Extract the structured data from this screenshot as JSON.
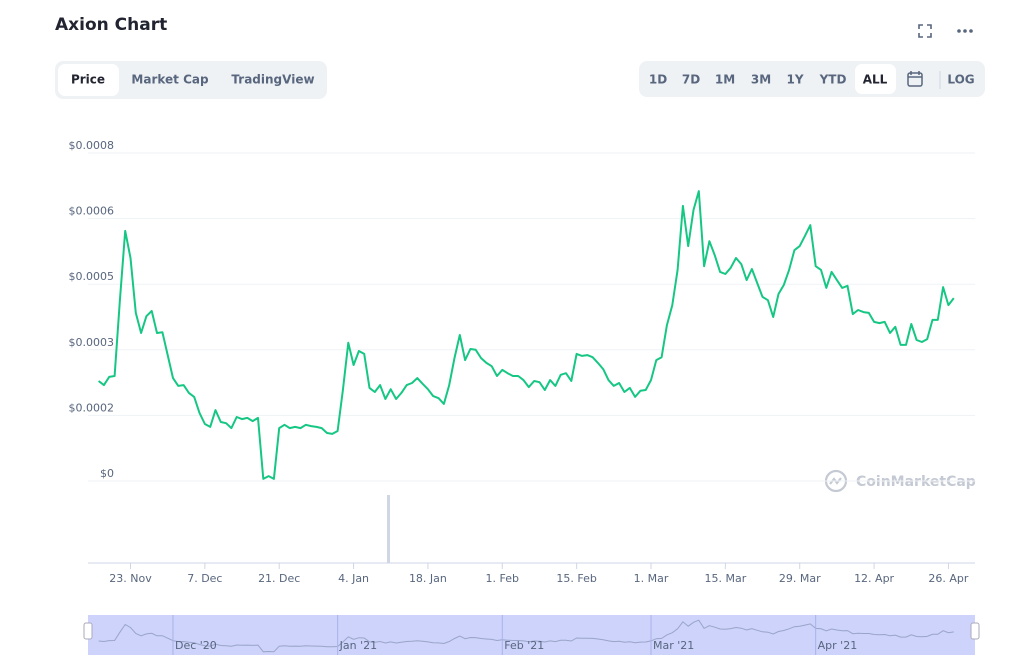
{
  "header": {
    "title": "Axion Chart"
  },
  "tabs": [
    "Price",
    "Market Cap",
    "TradingView"
  ],
  "ranges": [
    "1D",
    "7D",
    "1M",
    "3M",
    "1Y",
    "YTD",
    "ALL"
  ],
  "log_button": "LOG",
  "watermark": "CoinMarketCap",
  "chart_data": {
    "type": "line",
    "color": "#16c784",
    "x": [
      "2020-11-17",
      "2020-11-18",
      "2020-11-19",
      "2020-11-20",
      "2020-11-21",
      "2020-11-22",
      "2020-11-23",
      "2020-11-24",
      "2020-11-25",
      "2020-11-26",
      "2020-11-27",
      "2020-11-28",
      "2020-11-29",
      "2020-11-30",
      "2020-12-01",
      "2020-12-02",
      "2020-12-03",
      "2020-12-04",
      "2020-12-05",
      "2020-12-06",
      "2020-12-07",
      "2020-12-08",
      "2020-12-09",
      "2020-12-10",
      "2020-12-11",
      "2020-12-12",
      "2020-12-13",
      "2020-12-14",
      "2020-12-15",
      "2020-12-16",
      "2020-12-17",
      "2020-12-18",
      "2020-12-19",
      "2020-12-20",
      "2020-12-21",
      "2020-12-22",
      "2020-12-23",
      "2020-12-24",
      "2020-12-25",
      "2020-12-26",
      "2020-12-27",
      "2020-12-28",
      "2020-12-29",
      "2020-12-30",
      "2020-12-31",
      "2021-01-01",
      "2021-01-02",
      "2021-01-03",
      "2021-01-04",
      "2021-01-05",
      "2021-01-06",
      "2021-01-07",
      "2021-01-08",
      "2021-01-09",
      "2021-01-10",
      "2021-01-11",
      "2021-01-12",
      "2021-01-13",
      "2021-01-14",
      "2021-01-15",
      "2021-01-16",
      "2021-01-17",
      "2021-01-18",
      "2021-01-19",
      "2021-01-20",
      "2021-01-21",
      "2021-01-22",
      "2021-01-23",
      "2021-01-24",
      "2021-01-25",
      "2021-01-26",
      "2021-01-27",
      "2021-01-28",
      "2021-01-29",
      "2021-01-30",
      "2021-01-31",
      "2021-02-01",
      "2021-02-02",
      "2021-02-03",
      "2021-02-04",
      "2021-02-05",
      "2021-02-06",
      "2021-02-07",
      "2021-02-08",
      "2021-02-09",
      "2021-02-10",
      "2021-02-11",
      "2021-02-12",
      "2021-02-13",
      "2021-02-14",
      "2021-02-15",
      "2021-02-16",
      "2021-02-17",
      "2021-02-18",
      "2021-02-19",
      "2021-02-20",
      "2021-02-21",
      "2021-02-22",
      "2021-02-23",
      "2021-02-24",
      "2021-02-25",
      "2021-02-26",
      "2021-02-27",
      "2021-02-28",
      "2021-03-01",
      "2021-03-02",
      "2021-03-03",
      "2021-03-04",
      "2021-03-05",
      "2021-03-06",
      "2021-03-07",
      "2021-03-08",
      "2021-03-09",
      "2021-03-10",
      "2021-03-11",
      "2021-03-12",
      "2021-03-13",
      "2021-03-14",
      "2021-03-15",
      "2021-03-16",
      "2021-03-17",
      "2021-03-18",
      "2021-03-19",
      "2021-03-20",
      "2021-03-21",
      "2021-03-22",
      "2021-03-23",
      "2021-03-24",
      "2021-03-25",
      "2021-03-26",
      "2021-03-27",
      "2021-03-28",
      "2021-03-29",
      "2021-03-30",
      "2021-03-31",
      "2021-04-01",
      "2021-04-02",
      "2021-04-03",
      "2021-04-04",
      "2021-04-05",
      "2021-04-06",
      "2021-04-07",
      "2021-04-08",
      "2021-04-09",
      "2021-04-10",
      "2021-04-11",
      "2021-04-12",
      "2021-04-13",
      "2021-04-14",
      "2021-04-15",
      "2021-04-16",
      "2021-04-17",
      "2021-04-18",
      "2021-04-19",
      "2021-04-20",
      "2021-04-21",
      "2021-04-22",
      "2021-04-23",
      "2021-04-24",
      "2021-04-25",
      "2021-04-26",
      "2021-04-27"
    ],
    "values": [
      0.000244,
      0.000234,
      0.000254,
      0.000256,
      0.000441,
      0.00061,
      0.000544,
      0.00041,
      0.000361,
      0.000402,
      0.000415,
      0.000361,
      0.000363,
      0.000307,
      0.000251,
      0.000232,
      0.000234,
      0.000215,
      0.000205,
      0.000166,
      0.000139,
      0.000132,
      0.000173,
      0.000144,
      0.000141,
      0.000129,
      0.000156,
      0.000151,
      0.000154,
      0.000146,
      0.000154,
      5e-06,
      1.2e-05,
      5e-06,
      0.000129,
      0.000137,
      0.000129,
      0.000132,
      0.000129,
      0.000137,
      0.000134,
      0.000132,
      0.000129,
      0.000117,
      0.000115,
      0.000122,
      0.000222,
      0.000337,
      0.000283,
      0.000317,
      0.00031,
      0.000227,
      0.000217,
      0.000234,
      0.0002,
      0.000224,
      0.0002,
      0.000215,
      0.000234,
      0.000239,
      0.000251,
      0.000237,
      0.000224,
      0.000207,
      0.000202,
      0.000188,
      0.000234,
      0.0003,
      0.000356,
      0.000295,
      0.000322,
      0.00032,
      0.0003,
      0.000288,
      0.00028,
      0.000256,
      0.000271,
      0.000263,
      0.000256,
      0.000256,
      0.000246,
      0.000229,
      0.000244,
      0.000241,
      0.000222,
      0.000246,
      0.000232,
      0.000259,
      0.000263,
      0.000244,
      0.00031,
      0.000305,
      0.000307,
      0.000302,
      0.000288,
      0.000273,
      0.000246,
      0.000232,
      0.000239,
      0.000217,
      0.000227,
      0.000205,
      0.00022,
      0.000222,
      0.000246,
      0.000295,
      0.000302,
      0.00038,
      0.000429,
      0.000515,
      0.000671,
      0.000573,
      0.000661,
      0.000707,
      0.000524,
      0.000585,
      0.000551,
      0.00051,
      0.000505,
      0.00052,
      0.000544,
      0.000529,
      0.00049,
      0.000517,
      0.000483,
      0.000449,
      0.000441,
      0.0004,
      0.000456,
      0.000478,
      0.000515,
      0.000563,
      0.000573,
      0.000598,
      0.000624,
      0.000524,
      0.000515,
      0.000471,
      0.00051,
      0.00049,
      0.000471,
      0.000476,
      0.000407,
      0.000417,
      0.000412,
      0.00041,
      0.000388,
      0.000385,
      0.000388,
      0.000361,
      0.000376,
      0.000332,
      0.000332,
      0.000383,
      0.000344,
      0.000339,
      0.000346,
      0.000393,
      0.000393,
      0.000473,
      0.000429,
      0.000446
    ],
    "xlim": [
      "2020-11-15",
      "2021-05-01"
    ],
    "xticks": [
      {
        "value": "2020-11-23",
        "label": "23. Nov"
      },
      {
        "value": "2020-12-07",
        "label": "7. Dec"
      },
      {
        "value": "2020-12-21",
        "label": "21. Dec"
      },
      {
        "value": "2021-01-04",
        "label": "4. Jan"
      },
      {
        "value": "2021-01-18",
        "label": "18. Jan"
      },
      {
        "value": "2021-02-01",
        "label": "1. Feb"
      },
      {
        "value": "2021-02-15",
        "label": "15. Feb"
      },
      {
        "value": "2021-03-01",
        "label": "1. Mar"
      },
      {
        "value": "2021-03-15",
        "label": "15. Mar"
      },
      {
        "value": "2021-03-29",
        "label": "29. Mar"
      },
      {
        "value": "2021-04-12",
        "label": "12. Apr"
      },
      {
        "value": "2021-04-26",
        "label": "26. Apr"
      }
    ],
    "ylim": [
      0,
      0.0008
    ],
    "yticks": [
      {
        "value": 0,
        "label": "$0"
      },
      {
        "value": 0.00016,
        "label": "$0.0002"
      },
      {
        "value": 0.00032,
        "label": "$0.0003"
      },
      {
        "value": 0.00048,
        "label": "$0.0005"
      },
      {
        "value": 0.00064,
        "label": "$0.0006"
      },
      {
        "value": 0.0008,
        "label": "$0.0008"
      }
    ],
    "grid": true
  },
  "navigator": {
    "labels": [
      {
        "value": "2020-12-01",
        "label": "Dec '20"
      },
      {
        "value": "2021-01-01",
        "label": "Jan '21"
      },
      {
        "value": "2021-02-01",
        "label": "Feb '21"
      },
      {
        "value": "2021-03-01",
        "label": "Mar '21"
      },
      {
        "value": "2021-04-01",
        "label": "Apr '21"
      }
    ]
  }
}
